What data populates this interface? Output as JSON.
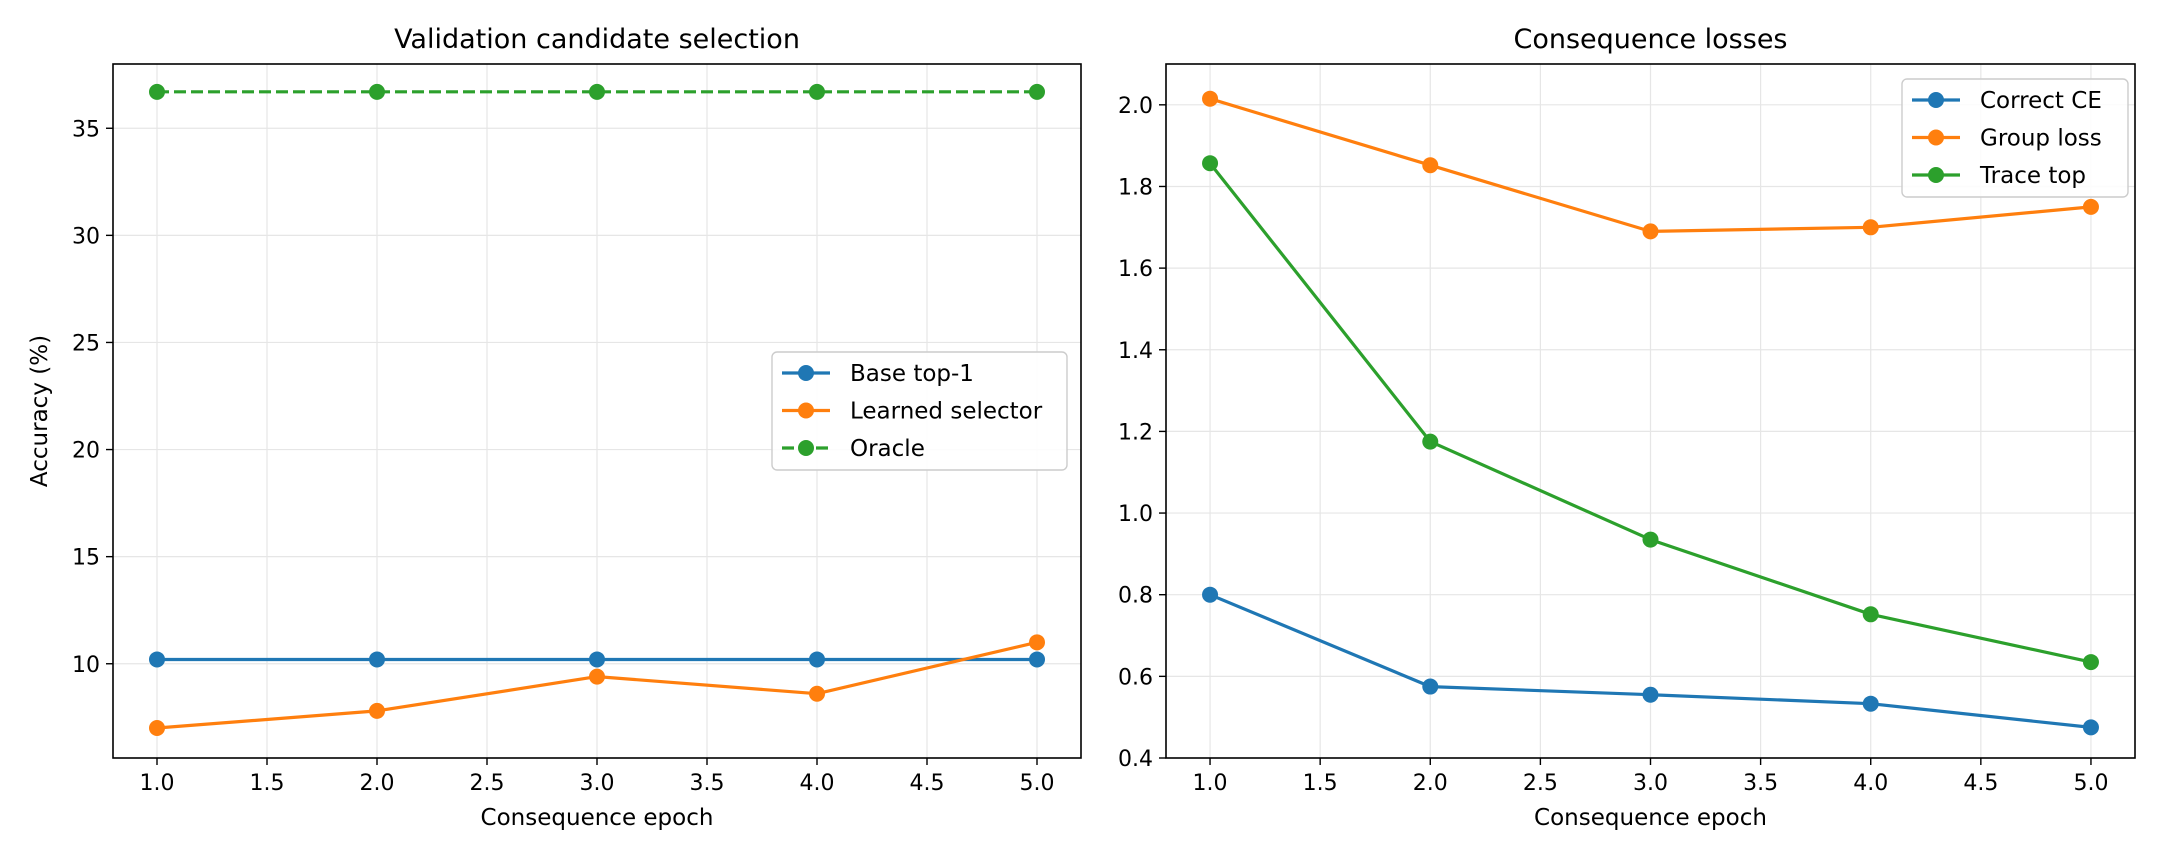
{
  "chart_data": [
    {
      "type": "line",
      "title": "Validation candidate selection",
      "xlabel": "Consequence epoch",
      "ylabel": "Accuracy (%)",
      "x": [
        1.0,
        2.0,
        3.0,
        4.0,
        5.0
      ],
      "xlim": [
        0.8,
        5.2
      ],
      "ylim": [
        5.6,
        38.0
      ],
      "xticks": [
        1.0,
        1.5,
        2.0,
        2.5,
        3.0,
        3.5,
        4.0,
        4.5,
        5.0
      ],
      "xtick_labels": [
        "1.0",
        "1.5",
        "2.0",
        "2.5",
        "3.0",
        "3.5",
        "4.0",
        "4.5",
        "5.0"
      ],
      "yticks": [
        10,
        15,
        20,
        25,
        30,
        35
      ],
      "ytick_labels": [
        "10",
        "15",
        "20",
        "25",
        "30",
        "35"
      ],
      "grid": true,
      "legend_position": "center-right",
      "series": [
        {
          "name": "Base top-1",
          "values": [
            10.2,
            10.2,
            10.2,
            10.2,
            10.2
          ],
          "color": "#1f77b4",
          "dashed": false
        },
        {
          "name": "Learned selector",
          "values": [
            7.0,
            7.8,
            9.4,
            8.6,
            11.0
          ],
          "color": "#ff7f0e",
          "dashed": false
        },
        {
          "name": "Oracle",
          "values": [
            36.7,
            36.7,
            36.7,
            36.7,
            36.7
          ],
          "color": "#2ca02c",
          "dashed": true
        }
      ]
    },
    {
      "type": "line",
      "title": "Consequence losses",
      "xlabel": "Consequence epoch",
      "ylabel": "",
      "x": [
        1.0,
        2.0,
        3.0,
        4.0,
        5.0
      ],
      "xlim": [
        0.8,
        5.2
      ],
      "ylim": [
        0.4,
        2.1
      ],
      "xticks": [
        1.0,
        1.5,
        2.0,
        2.5,
        3.0,
        3.5,
        4.0,
        4.5,
        5.0
      ],
      "xtick_labels": [
        "1.0",
        "1.5",
        "2.0",
        "2.5",
        "3.0",
        "3.5",
        "4.0",
        "4.5",
        "5.0"
      ],
      "yticks": [
        0.4,
        0.6,
        0.8,
        1.0,
        1.2,
        1.4,
        1.6,
        1.8,
        2.0
      ],
      "ytick_labels": [
        "0.4",
        "0.6",
        "0.8",
        "1.0",
        "1.2",
        "1.4",
        "1.6",
        "1.8",
        "2.0"
      ],
      "grid": true,
      "legend_position": "top-right",
      "series": [
        {
          "name": "Correct CE",
          "values": [
            0.8,
            0.575,
            0.555,
            0.533,
            0.475
          ],
          "color": "#1f77b4",
          "dashed": false
        },
        {
          "name": "Group loss",
          "values": [
            2.015,
            1.852,
            1.69,
            1.7,
            1.75
          ],
          "color": "#ff7f0e",
          "dashed": false
        },
        {
          "name": "Trace top",
          "values": [
            1.857,
            1.175,
            0.935,
            0.752,
            0.635
          ],
          "color": "#2ca02c",
          "dashed": false
        }
      ]
    }
  ]
}
